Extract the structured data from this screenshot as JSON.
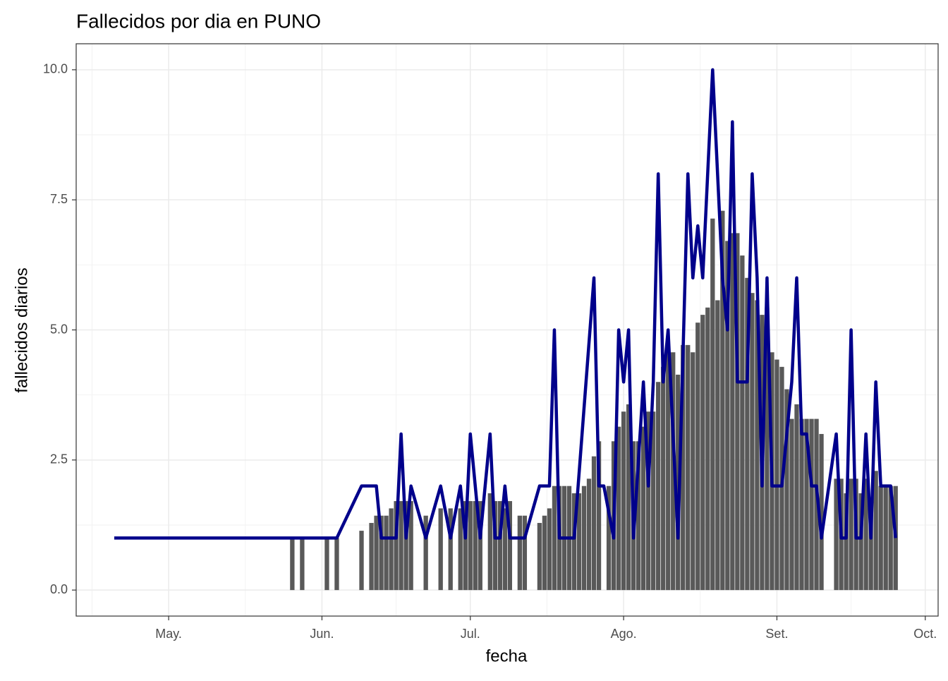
{
  "chart_data": {
    "type": "bar-line",
    "title": "Fallecidos por dia en PUNO",
    "x_label": "fecha",
    "y_label": "fallecidos diarios",
    "xlim": [
      -18.7,
      155.6
    ],
    "ylim": [
      -0.5,
      10.5
    ],
    "xticks": [
      {
        "value": 0,
        "label": "May."
      },
      {
        "value": 31,
        "label": "Jun."
      },
      {
        "value": 61,
        "label": "Jul."
      },
      {
        "value": 92,
        "label": "Ago."
      },
      {
        "value": 123,
        "label": "Set."
      },
      {
        "value": 153,
        "label": "Oct."
      }
    ],
    "yticks": [
      {
        "value": 0,
        "label": "0.0"
      },
      2.5,
      {
        "value": 5,
        "label": "5.0"
      },
      7.5,
      {
        "value": 10,
        "label": "10.0"
      }
    ],
    "grid": true,
    "series": [
      {
        "type": "bar",
        "color": "#595959",
        "x": [
          25,
          27,
          32,
          34,
          39,
          41,
          42,
          43,
          44,
          45,
          46,
          47,
          48,
          49,
          52,
          55,
          57,
          59,
          60,
          61,
          62,
          63,
          65,
          66,
          67,
          68,
          69,
          71,
          72,
          75,
          76,
          77,
          78,
          79,
          80,
          81,
          82,
          83,
          84,
          85,
          86,
          87,
          89,
          90,
          91,
          92,
          93,
          94,
          95,
          96,
          97,
          98,
          99,
          100,
          101,
          102,
          103,
          104,
          105,
          106,
          107,
          108,
          109,
          110,
          111,
          112,
          113,
          114,
          115,
          116,
          117,
          118,
          119,
          120,
          121,
          122,
          123,
          124,
          125,
          126,
          127,
          128,
          129,
          130,
          131,
          132,
          135,
          136,
          137,
          138,
          139,
          140,
          141,
          142,
          143,
          144,
          145,
          146,
          147
        ],
        "values": [
          1,
          1,
          1,
          1,
          1.14,
          1.29,
          1.43,
          1.43,
          1.43,
          1.57,
          1.71,
          1.71,
          1.71,
          1.71,
          1.43,
          1.57,
          1.57,
          1.57,
          1.71,
          1.71,
          1.71,
          1.71,
          1.86,
          1.71,
          1.71,
          1.57,
          1.71,
          1.43,
          1.43,
          1.29,
          1.43,
          1.57,
          2,
          2,
          2,
          2,
          1.86,
          1.86,
          2,
          2.14,
          2.57,
          2.86,
          2,
          2.86,
          3.14,
          3.43,
          3.57,
          2.86,
          2.86,
          3.14,
          3.43,
          3.43,
          4,
          4.29,
          4.57,
          4.57,
          4.14,
          4.71,
          4.71,
          4.57,
          5.14,
          5.29,
          5.43,
          7.14,
          5.57,
          7.29,
          6.71,
          6.86,
          6.86,
          6.43,
          6,
          5.71,
          5.57,
          5.29,
          5.43,
          4.57,
          4.43,
          4.29,
          3.86,
          3.29,
          3.57,
          3.29,
          3.29,
          3.29,
          3.29,
          3,
          2.14,
          2.14,
          1.86,
          2.14,
          2.14,
          1.86,
          2.14,
          1.57,
          2.29,
          2,
          2,
          2,
          2
        ]
      },
      {
        "type": "line",
        "color": "#00008b",
        "x": [
          -11,
          34,
          39,
          42,
          43,
          46,
          47,
          48,
          49,
          52,
          55,
          57,
          59,
          60,
          61,
          63,
          65,
          66,
          67,
          68,
          69,
          72,
          75,
          77,
          78,
          79,
          82,
          86,
          87,
          88,
          90,
          91,
          92,
          93,
          94,
          96,
          97,
          98,
          99,
          100,
          101,
          103,
          105,
          106,
          107,
          108,
          109,
          110,
          112,
          113,
          114,
          115,
          117,
          118,
          119,
          120,
          121,
          122,
          124,
          126,
          127,
          128,
          129,
          130,
          131,
          132,
          135,
          136,
          137,
          138,
          139,
          140,
          141,
          142,
          143,
          144,
          146,
          147
        ],
        "values": [
          1,
          1,
          2,
          2,
          1,
          1,
          3,
          1,
          2,
          1,
          2,
          1,
          2,
          1,
          3,
          1,
          3,
          1,
          1,
          2,
          1,
          1,
          2,
          2,
          5,
          1,
          1,
          6,
          2,
          2,
          1,
          5,
          4,
          5,
          1,
          4,
          2,
          4,
          8,
          4,
          5,
          1,
          8,
          6,
          7,
          6,
          8,
          10,
          6,
          5,
          9,
          4,
          4,
          8,
          6,
          2,
          6,
          2,
          2,
          4,
          6,
          3,
          3,
          2,
          2,
          1,
          3,
          1,
          1,
          5,
          1,
          1,
          3,
          1,
          4,
          2,
          2,
          1
        ]
      }
    ]
  }
}
